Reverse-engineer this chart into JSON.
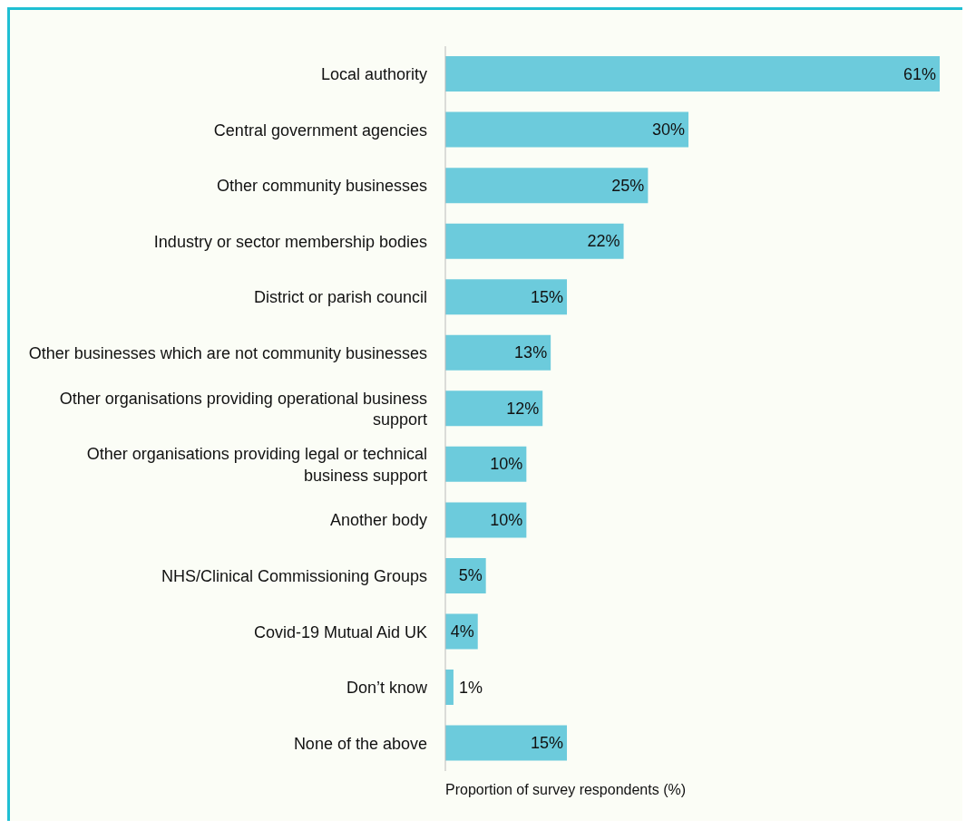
{
  "chart_data": {
    "type": "bar",
    "orientation": "horizontal",
    "xlabel": "Proportion of survey respondents (%)",
    "categories": [
      "Local authority",
      "Central government agencies",
      "Other community businesses",
      "Industry or sector membership bodies",
      "District or parish council",
      "Other businesses which are not community businesses",
      "Other organisations providing operational business support",
      "Other organisations providing legal or technical business support",
      "Another body",
      "NHS/Clinical Commissioning Groups",
      "Covid-19 Mutual Aid UK",
      "Don’t know",
      "None of the above"
    ],
    "values": [
      61,
      30,
      25,
      22,
      15,
      13,
      12,
      10,
      10,
      5,
      4,
      1,
      15
    ],
    "value_labels": [
      "61%",
      "30%",
      "25%",
      "22%",
      "15%",
      "13%",
      "12%",
      "10%",
      "10%",
      "5%",
      "4%",
      "1%",
      "15%"
    ],
    "color": "#6ccbdc",
    "grid": false,
    "legend": false
  }
}
